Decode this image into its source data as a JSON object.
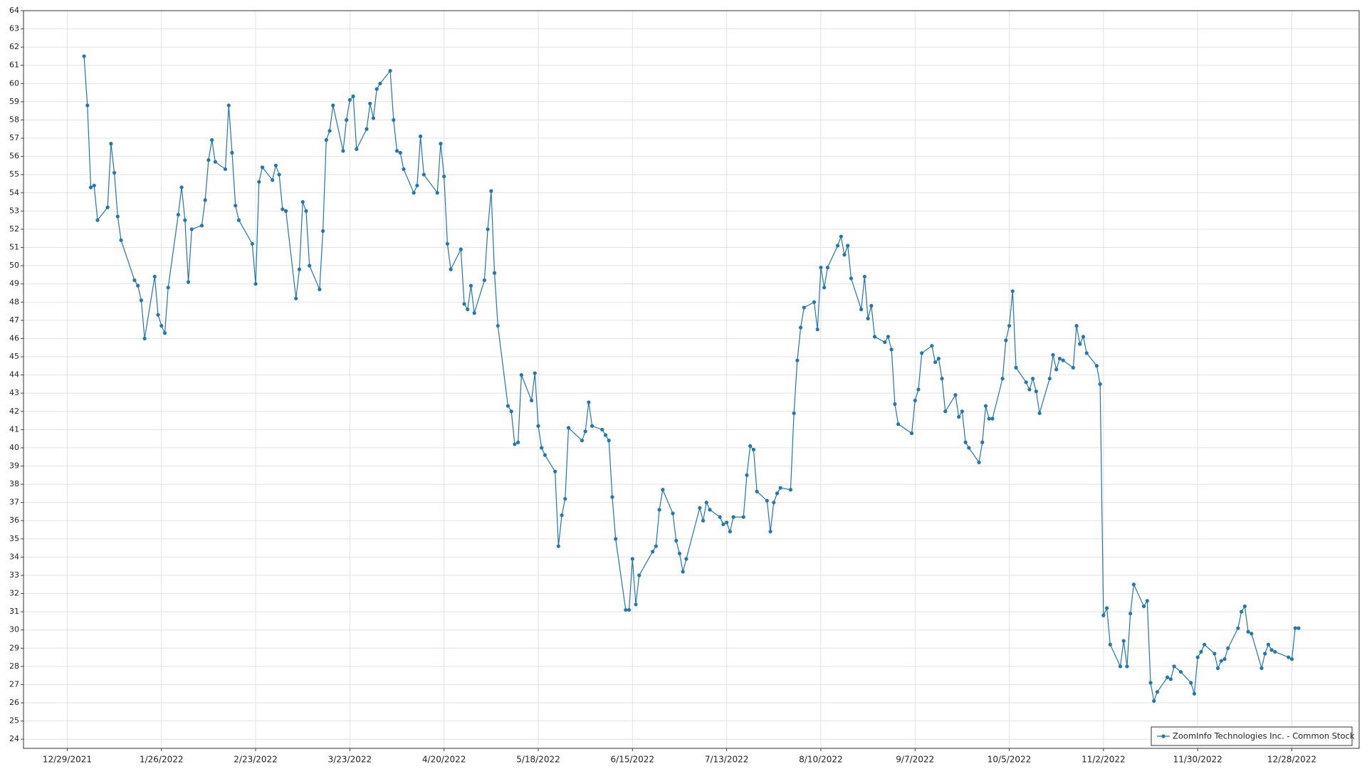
{
  "chart_data": {
    "type": "line",
    "x": [
      "1/3/2022",
      "1/4/2022",
      "1/5/2022",
      "1/6/2022",
      "1/7/2022",
      "1/10/2022",
      "1/11/2022",
      "1/12/2022",
      "1/13/2022",
      "1/14/2022",
      "1/18/2022",
      "1/19/2022",
      "1/20/2022",
      "1/21/2022",
      "1/24/2022",
      "1/25/2022",
      "1/26/2022",
      "1/27/2022",
      "1/28/2022",
      "1/31/2022",
      "2/1/2022",
      "2/2/2022",
      "2/3/2022",
      "2/4/2022",
      "2/7/2022",
      "2/8/2022",
      "2/9/2022",
      "2/10/2022",
      "2/11/2022",
      "2/14/2022",
      "2/15/2022",
      "2/16/2022",
      "2/17/2022",
      "2/18/2022",
      "2/22/2022",
      "2/23/2022",
      "2/24/2022",
      "2/25/2022",
      "2/28/2022",
      "3/1/2022",
      "3/2/2022",
      "3/3/2022",
      "3/4/2022",
      "3/7/2022",
      "3/8/2022",
      "3/9/2022",
      "3/10/2022",
      "3/11/2022",
      "3/14/2022",
      "3/15/2022",
      "3/16/2022",
      "3/17/2022",
      "3/18/2022",
      "3/21/2022",
      "3/22/2022",
      "3/23/2022",
      "3/24/2022",
      "3/25/2022",
      "3/28/2022",
      "3/29/2022",
      "3/30/2022",
      "3/31/2022",
      "4/1/2022",
      "4/4/2022",
      "4/5/2022",
      "4/6/2022",
      "4/7/2022",
      "4/8/2022",
      "4/11/2022",
      "4/12/2022",
      "4/13/2022",
      "4/14/2022",
      "4/18/2022",
      "4/19/2022",
      "4/20/2022",
      "4/21/2022",
      "4/22/2022",
      "4/25/2022",
      "4/26/2022",
      "4/27/2022",
      "4/28/2022",
      "4/29/2022",
      "5/2/2022",
      "5/3/2022",
      "5/4/2022",
      "5/5/2022",
      "5/6/2022",
      "5/9/2022",
      "5/10/2022",
      "5/11/2022",
      "5/12/2022",
      "5/13/2022",
      "5/16/2022",
      "5/17/2022",
      "5/18/2022",
      "5/19/2022",
      "5/20/2022",
      "5/23/2022",
      "5/24/2022",
      "5/25/2022",
      "5/26/2022",
      "5/27/2022",
      "5/31/2022",
      "6/1/2022",
      "6/2/2022",
      "6/3/2022",
      "6/6/2022",
      "6/7/2022",
      "6/8/2022",
      "6/9/2022",
      "6/10/2022",
      "6/13/2022",
      "6/14/2022",
      "6/15/2022",
      "6/16/2022",
      "6/17/2022",
      "6/21/2022",
      "6/22/2022",
      "6/23/2022",
      "6/24/2022",
      "6/27/2022",
      "6/28/2022",
      "6/29/2022",
      "6/30/2022",
      "7/1/2022",
      "7/5/2022",
      "7/6/2022",
      "7/7/2022",
      "7/8/2022",
      "7/11/2022",
      "7/12/2022",
      "7/13/2022",
      "7/14/2022",
      "7/15/2022",
      "7/18/2022",
      "7/19/2022",
      "7/20/2022",
      "7/21/2022",
      "7/22/2022",
      "7/25/2022",
      "7/26/2022",
      "7/27/2022",
      "7/28/2022",
      "7/29/2022",
      "8/1/2022",
      "8/2/2022",
      "8/3/2022",
      "8/4/2022",
      "8/5/2022",
      "8/8/2022",
      "8/9/2022",
      "8/10/2022",
      "8/11/2022",
      "8/12/2022",
      "8/15/2022",
      "8/16/2022",
      "8/17/2022",
      "8/18/2022",
      "8/19/2022",
      "8/22/2022",
      "8/23/2022",
      "8/24/2022",
      "8/25/2022",
      "8/26/2022",
      "8/29/2022",
      "8/30/2022",
      "8/31/2022",
      "9/1/2022",
      "9/2/2022",
      "9/6/2022",
      "9/7/2022",
      "9/8/2022",
      "9/9/2022",
      "9/12/2022",
      "9/13/2022",
      "9/14/2022",
      "9/15/2022",
      "9/16/2022",
      "9/19/2022",
      "9/20/2022",
      "9/21/2022",
      "9/22/2022",
      "9/23/2022",
      "9/26/2022",
      "9/27/2022",
      "9/28/2022",
      "9/29/2022",
      "9/30/2022",
      "10/3/2022",
      "10/4/2022",
      "10/5/2022",
      "10/6/2022",
      "10/7/2022",
      "10/10/2022",
      "10/11/2022",
      "10/12/2022",
      "10/13/2022",
      "10/14/2022",
      "10/17/2022",
      "10/18/2022",
      "10/19/2022",
      "10/20/2022",
      "10/21/2022",
      "10/24/2022",
      "10/25/2022",
      "10/26/2022",
      "10/27/2022",
      "10/28/2022",
      "10/31/2022",
      "11/1/2022",
      "11/2/2022",
      "11/3/2022",
      "11/4/2022",
      "11/7/2022",
      "11/8/2022",
      "11/9/2022",
      "11/10/2022",
      "11/11/2022",
      "11/14/2022",
      "11/15/2022",
      "11/16/2022",
      "11/17/2022",
      "11/18/2022",
      "11/21/2022",
      "11/22/2022",
      "11/23/2022",
      "11/25/2022",
      "11/28/2022",
      "11/29/2022",
      "11/30/2022",
      "12/1/2022",
      "12/2/2022",
      "12/5/2022",
      "12/6/2022",
      "12/7/2022",
      "12/8/2022",
      "12/9/2022",
      "12/12/2022",
      "12/13/2022",
      "12/14/2022",
      "12/15/2022",
      "12/16/2022",
      "12/19/2022",
      "12/20/2022",
      "12/21/2022",
      "12/22/2022",
      "12/23/2022",
      "12/27/2022",
      "12/28/2022",
      "12/29/2022",
      "12/30/2022"
    ],
    "series": [
      {
        "name": "ZoomInfo Technologies Inc. - Common Stock",
        "color": "#1f77b4",
        "values": [
          61.5,
          58.8,
          54.3,
          54.4,
          52.5,
          53.2,
          56.7,
          55.1,
          52.7,
          51.4,
          49.2,
          48.9,
          48.1,
          46.0,
          49.4,
          47.3,
          46.7,
          46.3,
          48.8,
          52.8,
          54.3,
          52.5,
          49.1,
          52.0,
          52.2,
          53.6,
          55.8,
          56.9,
          55.7,
          55.3,
          58.8,
          56.2,
          53.3,
          52.5,
          51.2,
          49.0,
          54.6,
          55.4,
          54.7,
          55.5,
          55.0,
          53.1,
          53.0,
          48.2,
          49.8,
          53.5,
          53.0,
          50.0,
          48.7,
          51.9,
          56.9,
          57.4,
          58.8,
          56.3,
          58.0,
          59.1,
          59.3,
          56.4,
          57.5,
          58.9,
          58.1,
          59.7,
          60.0,
          60.7,
          58.0,
          56.3,
          56.2,
          55.3,
          54.0,
          54.4,
          57.1,
          55.0,
          54.0,
          56.7,
          54.9,
          51.2,
          49.8,
          50.9,
          47.9,
          47.6,
          48.9,
          47.4,
          49.2,
          52.0,
          54.1,
          49.6,
          46.7,
          42.3,
          42.0,
          40.2,
          40.3,
          44.0,
          42.6,
          44.1,
          41.2,
          40.0,
          39.6,
          38.7,
          34.6,
          36.3,
          37.2,
          41.1,
          40.4,
          40.9,
          42.5,
          41.2,
          41.0,
          40.7,
          40.4,
          37.3,
          35.0,
          31.1,
          31.1,
          33.9,
          31.4,
          33.0,
          34.3,
          34.6,
          36.6,
          37.7,
          36.4,
          34.9,
          34.2,
          33.2,
          33.9,
          36.7,
          36.0,
          37.0,
          36.6,
          36.2,
          35.8,
          35.9,
          35.4,
          36.2,
          36.2,
          38.5,
          40.1,
          39.9,
          37.6,
          37.1,
          35.4,
          37.0,
          37.5,
          37.8,
          37.7,
          41.9,
          44.8,
          46.6,
          47.7,
          48.0,
          46.5,
          49.9,
          48.8,
          49.9,
          51.1,
          51.6,
          50.6,
          51.1,
          49.3,
          47.6,
          49.4,
          47.1,
          47.8,
          46.1,
          45.8,
          46.1,
          45.4,
          42.4,
          41.3,
          40.8,
          42.6,
          43.2,
          45.2,
          45.6,
          44.7,
          44.9,
          43.8,
          42.0,
          42.9,
          41.7,
          42.0,
          40.3,
          40.0,
          39.2,
          40.3,
          42.3,
          41.6,
          41.6,
          43.8,
          45.9,
          46.7,
          48.6,
          44.4,
          43.6,
          43.2,
          43.8,
          43.1,
          41.9,
          43.8,
          45.1,
          44.3,
          44.9,
          44.8,
          44.4,
          46.7,
          45.7,
          46.1,
          45.2,
          44.5,
          43.5,
          30.8,
          31.2,
          29.2,
          28.0,
          29.4,
          28.0,
          30.9,
          32.5,
          31.3,
          31.6,
          27.1,
          26.1,
          26.6,
          27.4,
          27.3,
          28.0,
          27.7,
          27.1,
          26.5,
          28.5,
          28.8,
          29.2,
          28.7,
          27.9,
          28.3,
          28.4,
          29.0,
          30.1,
          31.0,
          31.3,
          29.9,
          29.8,
          27.9,
          28.7,
          29.2,
          28.9,
          28.8,
          28.5,
          28.4,
          30.1,
          30.1
        ]
      }
    ],
    "xlim": [
      "12/16/2021",
      "1/17/2023"
    ],
    "xticks": [
      "12/29/2021",
      "1/26/2022",
      "2/23/2022",
      "3/23/2022",
      "4/20/2022",
      "5/18/2022",
      "6/15/2022",
      "7/13/2022",
      "8/10/2022",
      "9/7/2022",
      "10/5/2022",
      "11/2/2022",
      "11/30/2022",
      "12/28/2022"
    ],
    "ylim": [
      23.5,
      64
    ],
    "yticks": [
      24,
      25,
      26,
      27,
      28,
      29,
      30,
      31,
      32,
      33,
      34,
      35,
      36,
      37,
      38,
      39,
      40,
      41,
      42,
      43,
      44,
      45,
      46,
      47,
      48,
      49,
      50,
      51,
      52,
      53,
      54,
      55,
      56,
      57,
      58,
      59,
      60,
      61,
      62,
      63,
      64
    ],
    "grid": true,
    "legend": "lower-right"
  }
}
